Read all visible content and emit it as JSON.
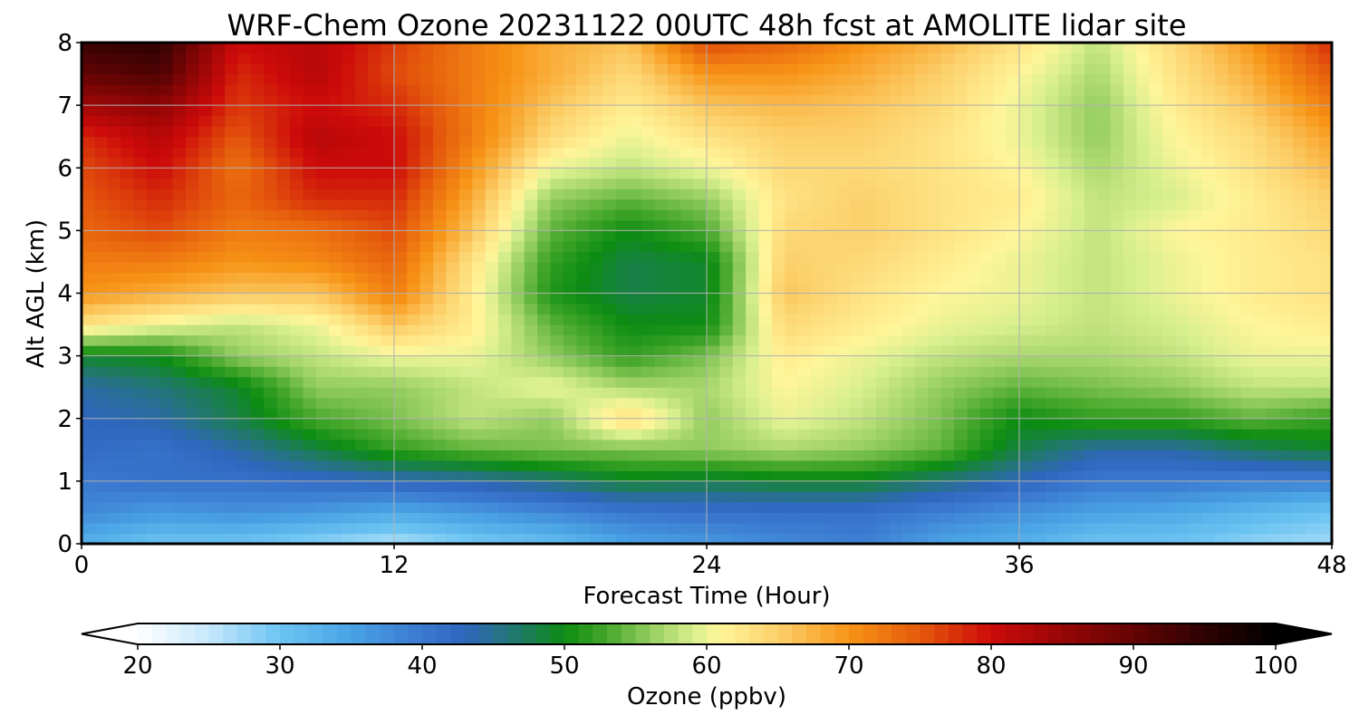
{
  "chart_data": {
    "type": "heatmap",
    "title": "WRF-Chem Ozone  20231122 00UTC 48h fcst at AMOLITE lidar site",
    "xlabel": "Forecast Time (Hour)",
    "ylabel": "Alt AGL (km)",
    "xlim": [
      0,
      48
    ],
    "ylim": [
      0,
      8
    ],
    "x_ticks": [
      0,
      12,
      24,
      36,
      48
    ],
    "y_ticks": [
      0,
      1,
      2,
      3,
      4,
      5,
      6,
      7,
      8
    ],
    "grid": true,
    "x": [
      0,
      3,
      6,
      9,
      12,
      15,
      18,
      21,
      24,
      27,
      30,
      33,
      36,
      39,
      42,
      45,
      48
    ],
    "y": [
      0,
      0.5,
      1,
      1.5,
      2,
      2.5,
      3,
      3.5,
      4,
      4.5,
      5,
      5.5,
      6,
      6.5,
      7,
      7.5,
      8
    ],
    "z": [
      [
        33,
        30,
        30,
        28,
        26,
        29,
        31,
        35,
        36,
        38,
        39,
        35,
        33,
        30,
        30,
        28,
        27
      ],
      [
        38,
        36,
        37,
        36,
        34,
        36,
        38,
        40,
        41,
        41,
        41,
        39,
        37,
        35,
        34,
        32,
        30
      ],
      [
        40,
        41,
        41,
        42,
        43,
        44,
        46,
        49,
        48,
        49,
        49,
        46,
        43,
        40,
        40,
        39,
        39
      ],
      [
        42,
        41,
        44,
        48,
        52,
        54,
        55,
        55,
        56,
        57,
        56,
        54,
        48,
        44,
        44,
        47,
        49
      ],
      [
        43,
        44,
        48,
        53,
        55,
        58,
        56,
        64,
        56,
        60,
        58,
        55,
        50,
        52,
        52,
        54,
        52
      ],
      [
        44,
        46,
        49,
        56,
        56,
        58,
        60,
        57,
        57,
        61,
        59,
        56,
        54,
        55,
        56,
        58,
        58
      ],
      [
        49,
        50,
        56,
        58,
        60,
        60,
        56,
        52,
        55,
        62,
        60,
        58,
        57,
        57,
        58,
        60,
        60
      ],
      [
        63,
        60,
        58,
        60,
        66,
        62,
        54,
        50,
        50,
        64,
        62,
        60,
        59,
        58,
        59,
        61,
        62
      ],
      [
        70,
        68,
        66,
        66,
        72,
        62,
        51,
        48,
        49,
        66,
        63,
        61,
        60,
        58,
        60,
        62,
        63
      ],
      [
        72,
        72,
        70,
        71,
        74,
        63,
        52,
        48,
        49,
        65,
        64,
        62,
        60,
        58,
        60,
        62,
        63
      ],
      [
        74,
        76,
        72,
        73,
        76,
        66,
        54,
        50,
        53,
        64,
        65,
        63,
        61,
        58,
        61,
        62,
        64
      ],
      [
        75,
        78,
        74,
        78,
        78,
        68,
        56,
        54,
        56,
        63,
        65,
        63,
        62,
        58,
        59,
        62,
        65
      ],
      [
        76,
        80,
        73,
        80,
        80,
        70,
        60,
        58,
        60,
        64,
        64,
        63,
        61,
        57,
        60,
        63,
        67
      ],
      [
        78,
        82,
        75,
        82,
        80,
        72,
        64,
        60,
        63,
        65,
        65,
        63,
        60,
        56,
        61,
        64,
        69
      ],
      [
        84,
        86,
        77,
        80,
        78,
        72,
        66,
        62,
        66,
        67,
        66,
        64,
        60,
        56,
        62,
        66,
        72
      ],
      [
        90,
        92,
        78,
        82,
        76,
        72,
        68,
        64,
        70,
        70,
        68,
        65,
        61,
        57,
        63,
        68,
        75
      ],
      [
        94,
        95,
        80,
        82,
        77,
        72,
        68,
        66,
        76,
        74,
        70,
        67,
        63,
        58,
        64,
        70,
        78
      ]
    ],
    "colorbar": {
      "label": "Ozone  (ppbv)",
      "min": 20,
      "max": 100,
      "ticks": [
        20,
        30,
        40,
        50,
        60,
        70,
        80,
        90,
        100
      ],
      "extend": "both",
      "orientation": "horizontal",
      "position": "bottom",
      "colormap_stops": [
        {
          "value": 20,
          "color": "#ffffff"
        },
        {
          "value": 25,
          "color": "#c6e8fb"
        },
        {
          "value": 30,
          "color": "#6cc4f2"
        },
        {
          "value": 35,
          "color": "#4aa3e4"
        },
        {
          "value": 40,
          "color": "#3a78cf"
        },
        {
          "value": 43,
          "color": "#2f66be"
        },
        {
          "value": 47,
          "color": "#1f7a62"
        },
        {
          "value": 50,
          "color": "#0c8c12"
        },
        {
          "value": 53,
          "color": "#47a82c"
        },
        {
          "value": 56,
          "color": "#93cc5f"
        },
        {
          "value": 59,
          "color": "#d8ef8e"
        },
        {
          "value": 61,
          "color": "#fff59a"
        },
        {
          "value": 65,
          "color": "#fcd06b"
        },
        {
          "value": 70,
          "color": "#f79416"
        },
        {
          "value": 75,
          "color": "#e55a0c"
        },
        {
          "value": 80,
          "color": "#cc0a0a"
        },
        {
          "value": 85,
          "color": "#980606"
        },
        {
          "value": 90,
          "color": "#640404"
        },
        {
          "value": 95,
          "color": "#2e0202"
        },
        {
          "value": 100,
          "color": "#000000"
        }
      ]
    }
  }
}
